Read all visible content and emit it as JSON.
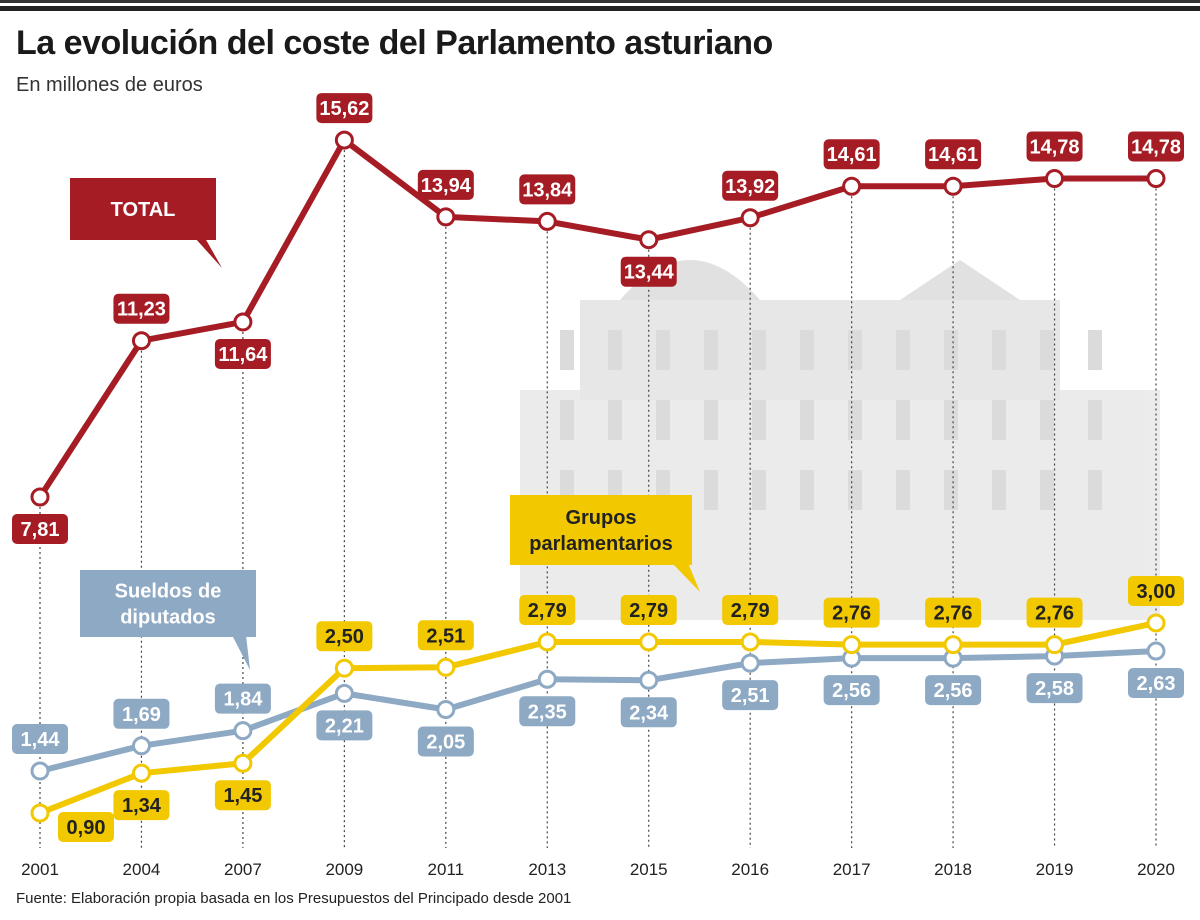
{
  "title": "La evolución del coste del Parlamento asturiano",
  "subtitle": "En millones de euros",
  "footer": "Fuente: Elaboración propia basada en los Presupuestos del Principado desde 2001",
  "chart_data": {
    "type": "line",
    "categories": [
      "2001",
      "2004",
      "2007",
      "2009",
      "2011",
      "2013",
      "2015",
      "2016",
      "2017",
      "2018",
      "2019",
      "2020"
    ],
    "series": [
      {
        "name": "TOTAL",
        "color": "#a61c24",
        "text_color": "#ffffff",
        "values": [
          7.81,
          11.23,
          11.64,
          15.62,
          13.94,
          13.84,
          13.44,
          13.92,
          14.61,
          14.61,
          14.78,
          14.78
        ],
        "labels": [
          "7,81",
          "11,23",
          "11,64",
          "15,62",
          "13,94",
          "13,84",
          "13,44",
          "13,92",
          "14,61",
          "14,61",
          "14,78",
          "14,78"
        ]
      },
      {
        "name": "Grupos parlamentarios",
        "color": "#f2c800",
        "text_color": "#222222",
        "values": [
          0.9,
          1.34,
          1.45,
          2.5,
          2.51,
          2.79,
          2.79,
          2.79,
          2.76,
          2.76,
          2.76,
          3.0
        ],
        "labels": [
          "0,90",
          "1,34",
          "1,45",
          "2,50",
          "2,51",
          "2,79",
          "2,79",
          "2,79",
          "2,76",
          "2,76",
          "2,76",
          "3,00"
        ]
      },
      {
        "name": "Sueldos de diputados",
        "color": "#8ea9c4",
        "text_color": "#ffffff",
        "values": [
          1.44,
          1.69,
          1.84,
          2.21,
          2.05,
          2.35,
          2.34,
          2.51,
          2.56,
          2.56,
          2.58,
          2.63
        ],
        "labels": [
          "1,44",
          "1,69",
          "1,84",
          "2,21",
          "2,05",
          "2,35",
          "2,34",
          "2,51",
          "2,56",
          "2,56",
          "2,58",
          "2,63"
        ]
      }
    ],
    "callouts": {
      "total": "TOTAL",
      "grupos": [
        "Grupos",
        "parlamentarios"
      ],
      "sueldos": [
        "Sueldos de",
        "diputados"
      ]
    },
    "grid": false,
    "legend": "callout labels"
  }
}
